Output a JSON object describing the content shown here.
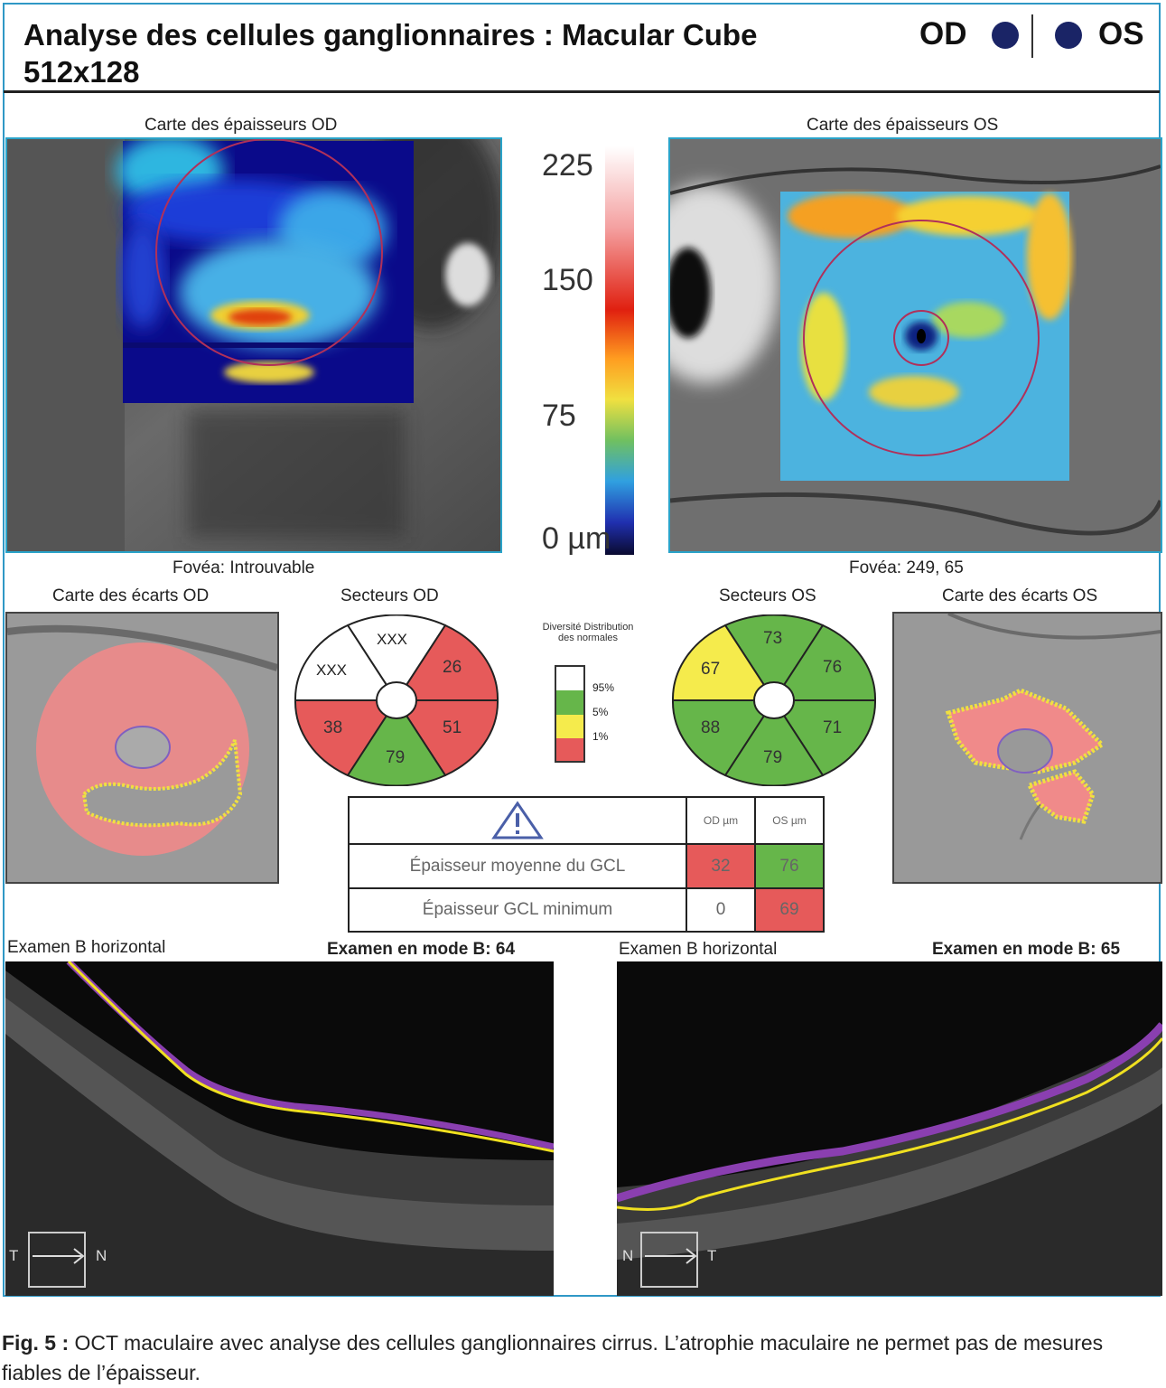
{
  "header": {
    "title_line1": "Analyse des cellules ganglionnaires : Macular Cube",
    "title_line2": "512x128",
    "eye_od": "OD",
    "eye_os": "OS"
  },
  "thickness_maps": {
    "od_title": "Carte des épaisseurs OD",
    "os_title": "Carte des épaisseurs OS",
    "od_fovea": "Fovéa: Introuvable",
    "os_fovea": "Fovéa: 249, 65"
  },
  "colorbar": {
    "labels": [
      "225",
      "150",
      "75",
      "0 µm"
    ]
  },
  "deviation_maps": {
    "od_title": "Carte des écarts OD",
    "os_title": "Carte des écarts OS"
  },
  "sectors": {
    "od_title": "Secteurs OD",
    "os_title": "Secteurs OS",
    "od_values": {
      "top": "XXX",
      "top_right": "26",
      "bottom_right": "51",
      "bottom": "79",
      "bottom_left": "38",
      "top_left": "XXX"
    },
    "os_values": {
      "top": "73",
      "top_right": "76",
      "bottom_right": "71",
      "bottom": "79",
      "bottom_left": "88",
      "top_left": "67"
    }
  },
  "legend": {
    "title": "Diversité Distribution des normales",
    "ticks": [
      "95%",
      "5%",
      "1%"
    ],
    "colors": {
      "white": "#ffffff",
      "green": "#66b64a",
      "yellow": "#f5eb4c",
      "red": "#e65a5a"
    }
  },
  "gcl_table": {
    "col_od": "OD µm",
    "col_os": "OS µm",
    "rows": [
      {
        "label": "Épaisseur moyenne du GCL",
        "od": "32",
        "os": "76"
      },
      {
        "label": "Épaisseur GCL minimum",
        "od": "0",
        "os": "69"
      }
    ]
  },
  "bscans": {
    "od_title": "Examen B horizontal",
    "od_mode": "Examen en mode B: 64",
    "os_title": "Examen B horizontal",
    "os_mode": "Examen en mode B: 65",
    "od_dir_left": "T",
    "od_dir_right": "N",
    "os_dir_left": "N",
    "os_dir_right": "T"
  },
  "caption": {
    "label": "Fig. 5 :",
    "text": " OCT maculaire avec analyse des cellules ganglionnaires cirrus. L’atrophie maculaire ne permet pas de mesures fiables de l’épaisseur."
  }
}
